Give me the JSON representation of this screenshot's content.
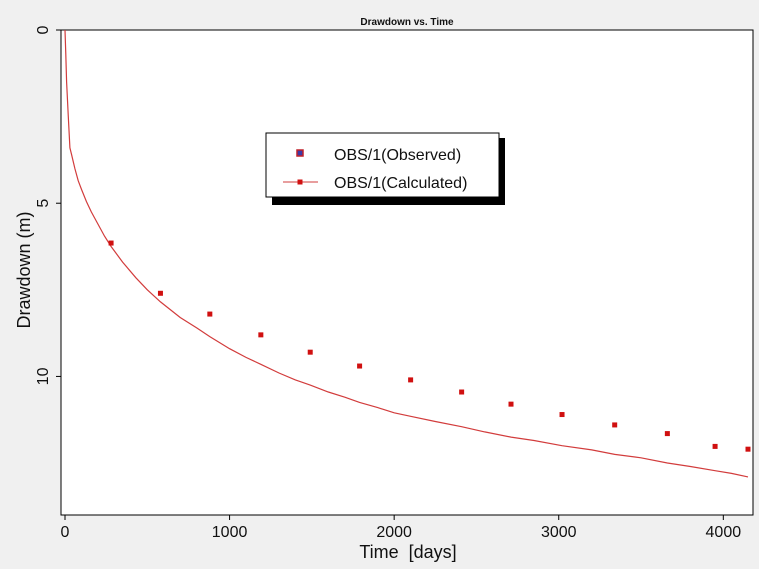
{
  "chart_data": {
    "type": "line",
    "title": "Drawdown vs. Time",
    "xlabel": "Time  [days]",
    "ylabel": "Drawdown (m)",
    "xlim": [
      0,
      4150
    ],
    "ylim": [
      0,
      14
    ],
    "y_inverted": true,
    "x_ticks": [
      0,
      1000,
      2000,
      3000,
      4000
    ],
    "y_ticks": [
      0,
      5,
      10
    ],
    "grid": false,
    "legend_position": "top-center",
    "series": [
      {
        "name": "OBS/1(Observed)",
        "style": "marker",
        "color": "#c0202a",
        "marker_fill": "#3a3aa8",
        "x": [],
        "y": []
      },
      {
        "name": "OBS/1(Calculated)",
        "style": "line+marker",
        "color": "#d23c3c",
        "marker_color": "#d01010",
        "line": {
          "x": [
            0,
            5,
            10,
            20,
            30,
            40,
            60,
            80,
            100,
            130,
            160,
            200,
            240,
            280,
            350,
            430,
            500,
            580,
            700,
            800,
            880,
            1000,
            1100,
            1190,
            1300,
            1400,
            1490,
            1600,
            1700,
            1790,
            1900,
            2000,
            2100,
            2250,
            2410,
            2550,
            2710,
            2850,
            3020,
            3200,
            3340,
            3500,
            3660,
            3800,
            3950,
            4050,
            4150
          ],
          "y": [
            0,
            0.7,
            1.5,
            2.5,
            3.4,
            3.6,
            4.0,
            4.35,
            4.6,
            4.95,
            5.25,
            5.6,
            5.95,
            6.25,
            6.7,
            7.15,
            7.5,
            7.85,
            8.3,
            8.6,
            8.85,
            9.2,
            9.45,
            9.65,
            9.9,
            10.1,
            10.25,
            10.45,
            10.6,
            10.75,
            10.9,
            11.05,
            11.15,
            11.3,
            11.45,
            11.6,
            11.75,
            11.85,
            12.0,
            12.12,
            12.25,
            12.35,
            12.5,
            12.6,
            12.72,
            12.8,
            12.9
          ]
        },
        "markers": {
          "x": [
            280,
            580,
            880,
            1190,
            1490,
            1790,
            2100,
            2410,
            2710,
            3020,
            3340,
            3660,
            3950,
            4150
          ],
          "y": [
            6.15,
            7.6,
            8.2,
            8.8,
            9.3,
            9.7,
            10.1,
            10.45,
            10.8,
            11.1,
            11.4,
            11.65,
            12.02,
            12.1
          ]
        }
      }
    ]
  }
}
